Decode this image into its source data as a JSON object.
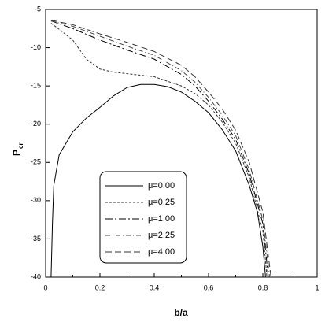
{
  "chart_data": {
    "type": "line",
    "x_label": "b/a",
    "y_label": "P",
    "y_label_sub": "cr",
    "xlim": [
      0,
      1
    ],
    "xticks": [
      0,
      0.2,
      0.4,
      0.6,
      0.8,
      1
    ],
    "ylim": [
      -40,
      -5
    ],
    "yticks": [
      -5,
      -10,
      -15,
      -20,
      -25,
      -30,
      -35,
      -40
    ],
    "series": [
      {
        "name": "μ=0.00",
        "color": "#000000",
        "dash": "none",
        "x": [
          0.02,
          0.025,
          0.03,
          0.05,
          0.1,
          0.15,
          0.2,
          0.25,
          0.3,
          0.35,
          0.4,
          0.45,
          0.5,
          0.55,
          0.6,
          0.65,
          0.7,
          0.75,
          0.78,
          0.8,
          0.81
        ],
        "values": [
          -40,
          -33,
          -28,
          -24,
          -21,
          -19.2,
          -17.8,
          -16.3,
          -15.2,
          -14.8,
          -14.8,
          -15.1,
          -15.8,
          -17,
          -18.5,
          -20.7,
          -23.5,
          -28,
          -31.5,
          -36,
          -40
        ]
      },
      {
        "name": "μ=0.25",
        "color": "#333333",
        "dash": "3,2",
        "x": [
          0.02,
          0.05,
          0.1,
          0.15,
          0.2,
          0.25,
          0.3,
          0.4,
          0.5,
          0.55,
          0.6,
          0.65,
          0.7,
          0.75,
          0.8,
          0.815
        ],
        "values": [
          -6.8,
          -7.6,
          -9,
          -11.5,
          -12.8,
          -13.2,
          -13.4,
          -13.8,
          -15,
          -16,
          -17.5,
          -19.7,
          -22.5,
          -27,
          -34,
          -40
        ]
      },
      {
        "name": "μ=1.00",
        "color": "#000000",
        "dash": "9,3,2,3",
        "x": [
          0.02,
          0.1,
          0.2,
          0.3,
          0.4,
          0.5,
          0.55,
          0.6,
          0.65,
          0.7,
          0.75,
          0.8,
          0.82
        ],
        "values": [
          -6.5,
          -7.5,
          -9,
          -10.3,
          -11.5,
          -13.5,
          -15,
          -17,
          -19.3,
          -22,
          -26.5,
          -33,
          -40
        ]
      },
      {
        "name": "μ=2.25",
        "color": "#444444",
        "dash": "6,3,1,3",
        "x": [
          0.02,
          0.1,
          0.2,
          0.3,
          0.4,
          0.5,
          0.55,
          0.6,
          0.65,
          0.7,
          0.75,
          0.8,
          0.825
        ],
        "values": [
          -6.5,
          -7.2,
          -8.5,
          -9.8,
          -11,
          -13,
          -14.5,
          -16.5,
          -18.8,
          -21.5,
          -26,
          -32.5,
          -40
        ]
      },
      {
        "name": "μ=4.00",
        "color": "#333333",
        "dash": "8,4",
        "x": [
          0.02,
          0.1,
          0.2,
          0.3,
          0.4,
          0.5,
          0.55,
          0.6,
          0.65,
          0.7,
          0.75,
          0.8,
          0.83
        ],
        "values": [
          -6.4,
          -7,
          -8.2,
          -9.3,
          -10.5,
          -12.3,
          -13.8,
          -15.8,
          -18,
          -20.8,
          -25,
          -31.5,
          -40
        ]
      }
    ]
  }
}
